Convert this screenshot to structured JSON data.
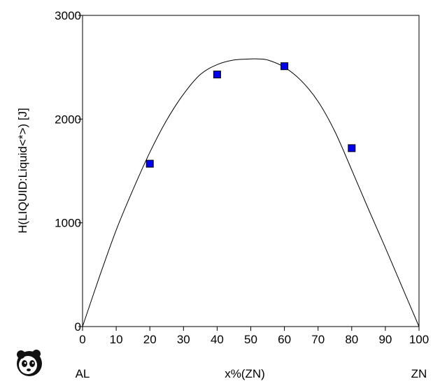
{
  "chart_data": {
    "type": "line",
    "xlabel": "x%(ZN)",
    "ylabel": "H(LIQUID:Liquid<*>)  [J]",
    "x_end_labels": {
      "left": "AL",
      "right": "ZN"
    },
    "xlim": [
      0,
      100
    ],
    "ylim": [
      0,
      3000
    ],
    "x_ticks": [
      0,
      10,
      20,
      30,
      40,
      50,
      60,
      70,
      80,
      90,
      100
    ],
    "y_ticks": [
      0,
      1000,
      2000,
      3000
    ],
    "grid": false,
    "series": [
      {
        "type": "line",
        "color": "#000000",
        "x": [
          0,
          5,
          10,
          15,
          20,
          25,
          30,
          35,
          40,
          45,
          50,
          52,
          55,
          60,
          65,
          70,
          75,
          80,
          85,
          90,
          95,
          100
        ],
        "y": [
          0,
          478,
          930,
          1320,
          1680,
          1990,
          2240,
          2430,
          2525,
          2570,
          2580,
          2580,
          2570,
          2500,
          2370,
          2170,
          1880,
          1510,
          1130,
          760,
          380,
          0
        ]
      },
      {
        "type": "scatter",
        "color": "#0000ee",
        "x": [
          20,
          40,
          60,
          80
        ],
        "y": [
          1570,
          2430,
          2510,
          1720
        ]
      }
    ]
  },
  "logo": {
    "icon": "panda-logo-icon"
  }
}
